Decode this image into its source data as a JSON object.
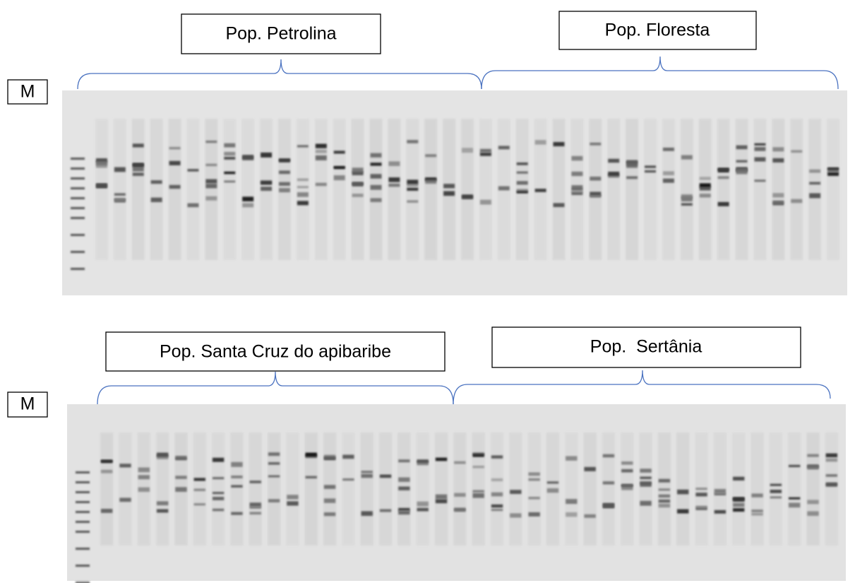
{
  "panels": [
    {
      "marker": "M",
      "groups": [
        {
          "label": "Pop. Petrolina"
        },
        {
          "label": "Pop. Floresta"
        }
      ]
    },
    {
      "marker": "M",
      "groups": [
        {
          "label": "Pop. Santa Cruz do apibaribe"
        },
        {
          "label": "Pop.  Sertânia"
        }
      ]
    }
  ]
}
